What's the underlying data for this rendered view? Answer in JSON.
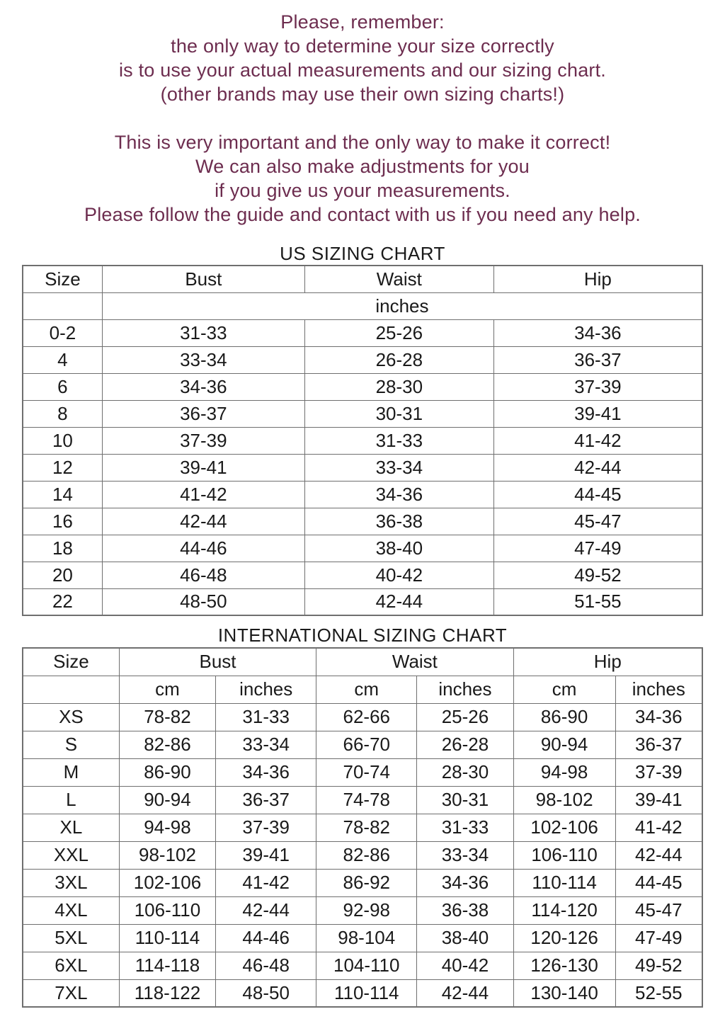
{
  "intro": {
    "color": "#6d2d4f",
    "lines": [
      "Please, remember:",
      "the only way to determine your size correctly",
      "is to use your actual measurements and our sizing chart.",
      "(other brands may use their own sizing charts!)",
      "This is very important and the only way to make it correct!",
      "We can also make adjustments for you",
      "if you give us your measurements.",
      "Please follow the guide and contact with us if you need any help."
    ]
  },
  "us_chart": {
    "title": "US SIZING CHART",
    "headers": {
      "size": "Size",
      "bust": "Bust",
      "waist": "Waist",
      "hip": "Hip"
    },
    "unit_row": "inches",
    "rows": [
      [
        "0-2",
        "31-33",
        "25-26",
        "34-36"
      ],
      [
        "4",
        "33-34",
        "26-28",
        "36-37"
      ],
      [
        "6",
        "34-36",
        "28-30",
        "37-39"
      ],
      [
        "8",
        "36-37",
        "30-31",
        "39-41"
      ],
      [
        "10",
        "37-39",
        "31-33",
        "41-42"
      ],
      [
        "12",
        "39-41",
        "33-34",
        "42-44"
      ],
      [
        "14",
        "41-42",
        "34-36",
        "44-45"
      ],
      [
        "16",
        "42-44",
        "36-38",
        "45-47"
      ],
      [
        "18",
        "44-46",
        "38-40",
        "47-49"
      ],
      [
        "20",
        "46-48",
        "40-42",
        "49-52"
      ],
      [
        "22",
        "48-50",
        "42-44",
        "51-55"
      ]
    ]
  },
  "intl_chart": {
    "title": "INTERNATIONAL SIZING CHART",
    "headers": {
      "size": "Size",
      "bust": "Bust",
      "waist": "Waist",
      "hip": "Hip"
    },
    "sub_headers": {
      "cm": "cm",
      "inches": "inches"
    },
    "rows": [
      [
        "XS",
        "78-82",
        "31-33",
        "62-66",
        "25-26",
        "86-90",
        "34-36"
      ],
      [
        "S",
        "82-86",
        "33-34",
        "66-70",
        "26-28",
        "90-94",
        "36-37"
      ],
      [
        "M",
        "86-90",
        "34-36",
        "70-74",
        "28-30",
        "94-98",
        "37-39"
      ],
      [
        "L",
        "90-94",
        "36-37",
        "74-78",
        "30-31",
        "98-102",
        "39-41"
      ],
      [
        "XL",
        "94-98",
        "37-39",
        "78-82",
        "31-33",
        "102-106",
        "41-42"
      ],
      [
        "XXL",
        "98-102",
        "39-41",
        "82-86",
        "33-34",
        "106-110",
        "42-44"
      ],
      [
        "3XL",
        "102-106",
        "41-42",
        "86-92",
        "34-36",
        "110-114",
        "44-45"
      ],
      [
        "4XL",
        "106-110",
        "42-44",
        "92-98",
        "36-38",
        "114-120",
        "45-47"
      ],
      [
        "5XL",
        "110-114",
        "44-46",
        "98-104",
        "38-40",
        "120-126",
        "47-49"
      ],
      [
        "6XL",
        "114-118",
        "46-48",
        "104-110",
        "40-42",
        "126-130",
        "49-52"
      ],
      [
        "7XL",
        "118-122",
        "48-50",
        "110-114",
        "42-44",
        "130-140",
        "52-55"
      ]
    ]
  },
  "chart_data": [
    {
      "type": "table",
      "title": "US SIZING CHART",
      "unit": "inches",
      "columns": [
        "Size",
        "Bust",
        "Waist",
        "Hip"
      ],
      "rows": [
        [
          "0-2",
          "31-33",
          "25-26",
          "34-36"
        ],
        [
          "4",
          "33-34",
          "26-28",
          "36-37"
        ],
        [
          "6",
          "34-36",
          "28-30",
          "37-39"
        ],
        [
          "8",
          "36-37",
          "30-31",
          "39-41"
        ],
        [
          "10",
          "37-39",
          "31-33",
          "41-42"
        ],
        [
          "12",
          "39-41",
          "33-34",
          "42-44"
        ],
        [
          "14",
          "41-42",
          "34-36",
          "44-45"
        ],
        [
          "16",
          "42-44",
          "36-38",
          "45-47"
        ],
        [
          "18",
          "44-46",
          "38-40",
          "47-49"
        ],
        [
          "20",
          "46-48",
          "40-42",
          "49-52"
        ],
        [
          "22",
          "48-50",
          "42-44",
          "51-55"
        ]
      ]
    },
    {
      "type": "table",
      "title": "INTERNATIONAL SIZING CHART",
      "columns": [
        "Size",
        "Bust cm",
        "Bust inches",
        "Waist cm",
        "Waist inches",
        "Hip cm",
        "Hip inches"
      ],
      "rows": [
        [
          "XS",
          "78-82",
          "31-33",
          "62-66",
          "25-26",
          "86-90",
          "34-36"
        ],
        [
          "S",
          "82-86",
          "33-34",
          "66-70",
          "26-28",
          "90-94",
          "36-37"
        ],
        [
          "M",
          "86-90",
          "34-36",
          "70-74",
          "28-30",
          "94-98",
          "37-39"
        ],
        [
          "L",
          "90-94",
          "36-37",
          "74-78",
          "30-31",
          "98-102",
          "39-41"
        ],
        [
          "XL",
          "94-98",
          "37-39",
          "78-82",
          "31-33",
          "102-106",
          "41-42"
        ],
        [
          "XXL",
          "98-102",
          "39-41",
          "82-86",
          "33-34",
          "106-110",
          "42-44"
        ],
        [
          "3XL",
          "102-106",
          "41-42",
          "86-92",
          "34-36",
          "110-114",
          "44-45"
        ],
        [
          "4XL",
          "106-110",
          "42-44",
          "92-98",
          "36-38",
          "114-120",
          "45-47"
        ],
        [
          "5XL",
          "110-114",
          "44-46",
          "98-104",
          "38-40",
          "120-126",
          "47-49"
        ],
        [
          "6XL",
          "114-118",
          "46-48",
          "104-110",
          "40-42",
          "126-130",
          "49-52"
        ],
        [
          "7XL",
          "118-122",
          "48-50",
          "110-114",
          "42-44",
          "130-140",
          "52-55"
        ]
      ]
    }
  ]
}
